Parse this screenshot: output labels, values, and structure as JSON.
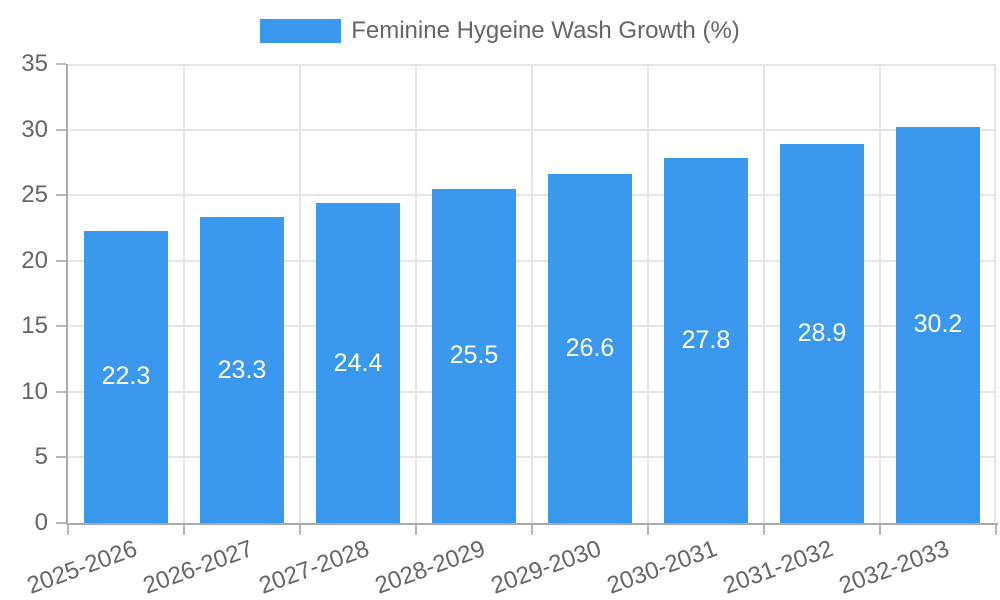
{
  "chart_data": {
    "type": "bar",
    "title": "",
    "legend": {
      "label": "Feminine Hygeine Wash Growth (%)",
      "position": "top"
    },
    "categories": [
      "2025-2026",
      "2026-2027",
      "2027-2028",
      "2028-2029",
      "2029-2030",
      "2030-2031",
      "2031-2032",
      "2032-2033"
    ],
    "values": [
      22.3,
      23.3,
      24.4,
      25.5,
      26.6,
      27.8,
      28.9,
      30.2
    ],
    "xlabel": "",
    "ylabel": "",
    "ylim": [
      0,
      35
    ],
    "y_ticks": [
      0,
      5,
      10,
      15,
      20,
      25,
      30,
      35
    ],
    "grid": true,
    "colors": {
      "bar": "#3a99ee",
      "grid": "#e6e6e6",
      "axis": "#aaaaaa",
      "tick_mark": "#b8b8b8",
      "tick_text": "#666666",
      "value_text": "#ffffff",
      "background": "#ffffff"
    }
  }
}
